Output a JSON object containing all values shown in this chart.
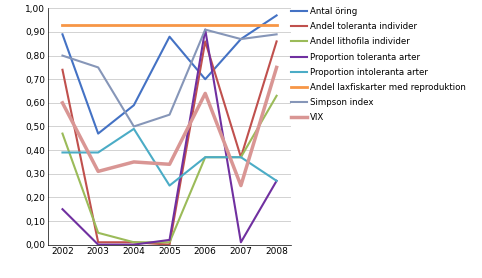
{
  "years": [
    2002,
    2003,
    2004,
    2005,
    2006,
    2007,
    2008
  ],
  "series": {
    "Antal öring": {
      "values": [
        0.89,
        0.47,
        0.59,
        0.88,
        0.7,
        0.87,
        0.97
      ],
      "color": "#4472C4",
      "linewidth": 1.5
    },
    "Andel toleranta individer": {
      "values": [
        0.74,
        0.01,
        0.01,
        0.0,
        0.86,
        0.37,
        0.86
      ],
      "color": "#C0504D",
      "linewidth": 1.5
    },
    "Andel lithofila individer": {
      "values": [
        0.47,
        0.05,
        0.01,
        0.01,
        0.37,
        0.37,
        0.63
      ],
      "color": "#9BBB59",
      "linewidth": 1.5
    },
    "Proportion toleranta arter": {
      "values": [
        0.15,
        0.0,
        0.0,
        0.02,
        0.91,
        0.01,
        0.27
      ],
      "color": "#7030A0",
      "linewidth": 1.5
    },
    "Proportion intoleranta arter": {
      "values": [
        0.39,
        0.39,
        0.49,
        0.25,
        0.37,
        0.37,
        0.27
      ],
      "color": "#4BACC6",
      "linewidth": 1.5
    },
    "Andel laxfiskarter med reproduktion": {
      "values": [
        0.93,
        0.93,
        0.93,
        0.93,
        0.93,
        0.93,
        0.93
      ],
      "color": "#F79646",
      "linewidth": 2.0
    },
    "Simpson index": {
      "values": [
        0.8,
        0.75,
        0.5,
        0.55,
        0.91,
        0.87,
        0.89
      ],
      "color": "#8696B8",
      "linewidth": 1.5
    },
    "VIX": {
      "values": [
        0.6,
        0.31,
        0.35,
        0.34,
        0.64,
        0.25,
        0.75
      ],
      "color": "#D99694",
      "linewidth": 2.5
    }
  },
  "ylim": [
    0.0,
    1.0
  ],
  "yticks": [
    0.0,
    0.1,
    0.2,
    0.3,
    0.4,
    0.5,
    0.6,
    0.7,
    0.8,
    0.9,
    1.0
  ],
  "ytick_labels": [
    "0,00",
    "0,10",
    "0,20",
    "0,30",
    "0,40",
    "0,50",
    "0,60",
    "0,70",
    "0,80",
    "0,90",
    "1,00"
  ],
  "legend_order": [
    "Antal öring",
    "Andel toleranta individer",
    "Andel lithofila individer",
    "Proportion toleranta arter",
    "Proportion intoleranta arter",
    "Andel laxfiskarter med reproduktion",
    "Simpson index",
    "VIX"
  ],
  "bg_color": "#FFFFFF",
  "grid_color": "#C0C0C0"
}
